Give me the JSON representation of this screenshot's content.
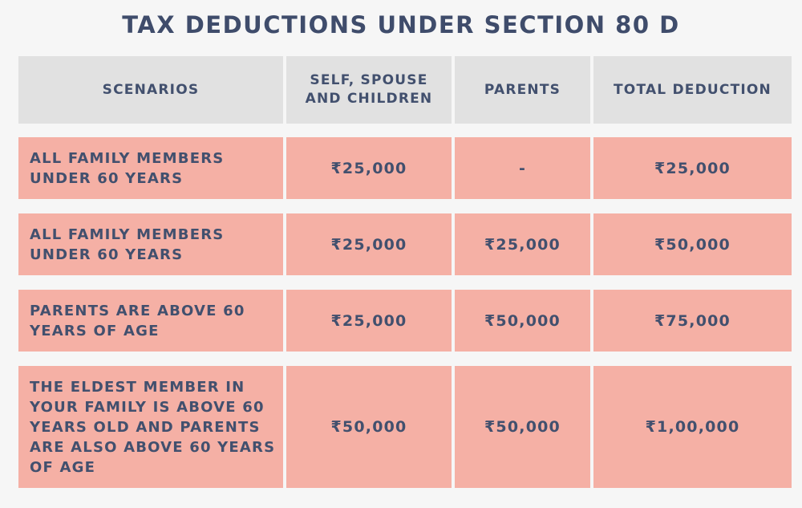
{
  "title": "TAX DEDUCTIONS UNDER SECTION 80 D",
  "table": {
    "headers": [
      "SCENARIOS",
      "SELF, SPOUSE AND CHILDREN",
      "PARENTS",
      "TOTAL DEDUCTION"
    ],
    "rows": [
      {
        "scenario": "ALL FAMILY MEMBERS UNDER 60 YEARS",
        "self": "₹25,000",
        "parents": "-",
        "total": "₹25,000"
      },
      {
        "scenario": "ALL FAMILY MEMBERS UNDER 60 YEARS",
        "self": "₹25,000",
        "parents": "₹25,000",
        "total": "₹50,000"
      },
      {
        "scenario": "PARENTS ARE ABOVE 60 YEARS OF AGE",
        "self": "₹25,000",
        "parents": "₹50,000",
        "total": "₹75,000"
      },
      {
        "scenario": "THE ELDEST MEMBER IN YOUR FAMILY IS ABOVE 60 YEARS OLD AND PARENTS ARE ALSO ABOVE 60 YEARS OF AGE",
        "self": "₹50,000",
        "parents": "₹50,000",
        "total": "₹1,00,000"
      }
    ]
  },
  "colors": {
    "header_bg": "#e1e1e1",
    "row_bg": "#f5b0a5",
    "text": "#42506e"
  }
}
